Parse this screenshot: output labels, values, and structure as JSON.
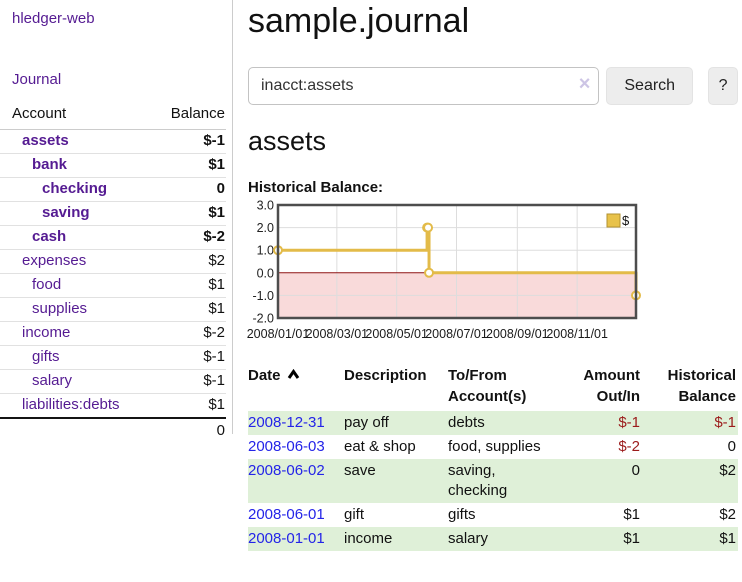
{
  "colors": {
    "link_purple": "#551b92",
    "link_blue": "#2424e8",
    "negative_strong": "#a01d1d",
    "negative_soft": "#c08080",
    "row_stripe_green": "#dff0d8",
    "button_bg": "#ededed"
  },
  "sidebar": {
    "brand": "hledger-web",
    "journal_link": "Journal",
    "accounts_table": {
      "headers": [
        "Account",
        "Balance"
      ],
      "rows": [
        {
          "name": "assets",
          "balance": "$-1",
          "level": 1,
          "bold": true,
          "balance_style": "negative"
        },
        {
          "name": "bank",
          "balance": "$1",
          "level": 2,
          "bold": true,
          "balance_style": "normal"
        },
        {
          "name": "checking",
          "balance": "0",
          "level": 3,
          "bold": true,
          "balance_style": "normal"
        },
        {
          "name": "saving",
          "balance": "$1",
          "level": 3,
          "bold": true,
          "balance_style": "normal"
        },
        {
          "name": "cash",
          "balance": "$-2",
          "level": 2,
          "bold": true,
          "balance_style": "negative"
        },
        {
          "name": "expenses",
          "balance": "$2",
          "level": 1,
          "bold": false,
          "balance_style": "normal"
        },
        {
          "name": "food",
          "balance": "$1",
          "level": 2,
          "bold": false,
          "balance_style": "normal"
        },
        {
          "name": "supplies",
          "balance": "$1",
          "level": 2,
          "bold": false,
          "balance_style": "normal"
        },
        {
          "name": "income",
          "balance": "$-2",
          "level": 1,
          "bold": false,
          "balance_style": "negative-soft"
        },
        {
          "name": "gifts",
          "balance": "$-1",
          "level": 2,
          "bold": false,
          "balance_style": "negative-soft"
        },
        {
          "name": "salary",
          "balance": "$-1",
          "level": 2,
          "bold": false,
          "balance_style": "negative-soft",
          "link_color": "blue"
        },
        {
          "name": "liabilities:debts",
          "balance": "$1",
          "level": 1,
          "bold": false,
          "balance_style": "normal"
        }
      ],
      "total": "0"
    }
  },
  "main": {
    "title": "sample.journal",
    "search": {
      "value": "inacct:assets",
      "clear_icon": "×",
      "search_button": "Search",
      "help_button": "?"
    },
    "account_heading": "assets"
  },
  "chart_data": {
    "type": "line",
    "step": true,
    "title": "Historical Balance:",
    "series": [
      {
        "name": "$",
        "points": [
          {
            "x": "2008-01-01",
            "y": 1.0
          },
          {
            "x": "2008-06-01",
            "y": 2.0
          },
          {
            "x": "2008-06-02",
            "y": 2.0
          },
          {
            "x": "2008-06-03",
            "y": 0.0
          },
          {
            "x": "2008-12-31",
            "y": -1.0
          }
        ]
      }
    ],
    "x_range": [
      "2008-01-01",
      "2008-12-31"
    ],
    "xticks": [
      "2008/01/01",
      "2008/03/01",
      "2008/05/01",
      "2008/07/01",
      "2008/09/01",
      "2008/11/01"
    ],
    "yticks": [
      3.0,
      2.0,
      1.0,
      0.0,
      -1.0,
      -2.0
    ],
    "ylim": [
      -2.0,
      3.0
    ],
    "grid": true,
    "legend": {
      "label": "$",
      "position": "top-right"
    },
    "colors": {
      "line": "#e3bb49",
      "marker_fill": "#ffffff",
      "negative_region": "#f9dada",
      "zero_line": "#8f1313",
      "border": "#4d4d4d",
      "grid": "#dddddd",
      "legend_fill": "#e8c24a",
      "legend_border": "#b29130"
    }
  },
  "register_table": {
    "headers": {
      "date": "Date",
      "description": "Description",
      "accounts": "To/From Account(s)",
      "amount": "Amount Out/In",
      "balance": "Historical Balance"
    },
    "sort": {
      "column": "date",
      "direction": "ascending"
    },
    "rows": [
      {
        "date": "2008-12-31",
        "description": "pay off",
        "accounts": "debts",
        "amount": "$-1",
        "balance": "$-1",
        "amount_negative": true,
        "balance_negative": true
      },
      {
        "date": "2008-06-03",
        "description": "eat & shop",
        "accounts": "food, supplies",
        "amount": "$-2",
        "balance": "0",
        "amount_negative": true,
        "balance_negative": false
      },
      {
        "date": "2008-06-02",
        "description": "save",
        "accounts": "saving, checking",
        "amount": "0",
        "balance": "$2",
        "amount_negative": false,
        "balance_negative": false
      },
      {
        "date": "2008-06-01",
        "description": "gift",
        "accounts": "gifts",
        "amount": "$1",
        "balance": "$2",
        "amount_negative": false,
        "balance_negative": false
      },
      {
        "date": "2008-01-01",
        "description": "income",
        "accounts": "salary",
        "amount": "$1",
        "balance": "$1",
        "amount_negative": false,
        "balance_negative": false
      }
    ]
  }
}
